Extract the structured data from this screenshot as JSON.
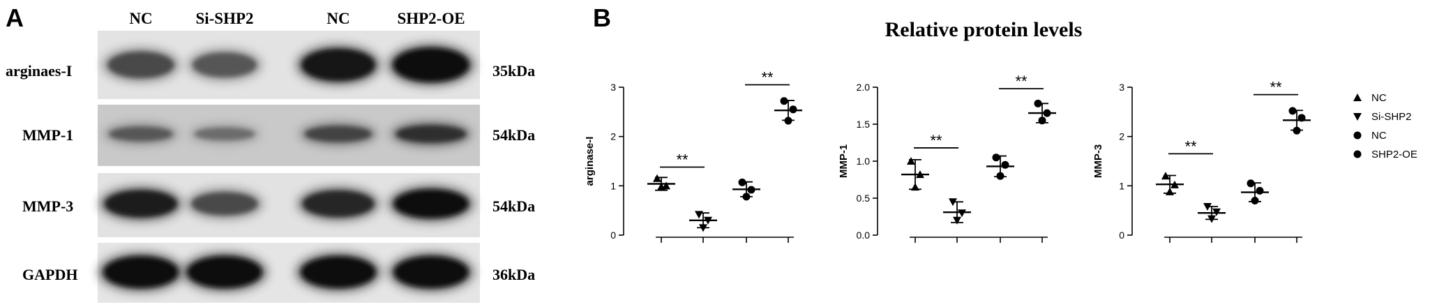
{
  "panel_a": {
    "letter": "A",
    "lanes": [
      "NC",
      "Si-SHP2",
      "NC",
      "SHP2-OE"
    ],
    "blots": [
      {
        "label": "arginaes-I",
        "size": "35kDa",
        "intensity": [
          0.55,
          0.45,
          0.9,
          1.0
        ]
      },
      {
        "label": "MMP-1",
        "size": "54kDa",
        "intensity": [
          0.45,
          0.3,
          0.6,
          0.75
        ]
      },
      {
        "label": "MMP-3",
        "size": "54kDa",
        "intensity": [
          0.85,
          0.55,
          0.8,
          0.95
        ]
      },
      {
        "label": "GAPDH",
        "size": "36kDa",
        "intensity": [
          0.95,
          0.95,
          0.95,
          0.95
        ]
      }
    ]
  },
  "panel_b": {
    "letter": "B",
    "title": "Relative protein levels",
    "legend": {
      "placement": "right",
      "entries": [
        {
          "name": "NC",
          "marker": "triangle-up"
        },
        {
          "name": "Si-SHP2",
          "marker": "triangle-down"
        },
        {
          "name": "NC",
          "marker": "circle"
        },
        {
          "name": "SHP2-OE",
          "marker": "circle"
        }
      ]
    }
  },
  "chart_data": [
    {
      "type": "scatter",
      "ylabel": "arginase-I",
      "ylim": [
        0,
        3
      ],
      "yticks": [
        "0",
        "1",
        "2",
        "3"
      ],
      "groups": [
        "NC",
        "Si-SHP2",
        "NC",
        "SHP2-OE"
      ],
      "means": [
        1.04,
        0.3,
        0.93,
        2.53
      ],
      "errors": [
        0.13,
        0.15,
        0.15,
        0.2
      ],
      "points": [
        [
          1.15,
          1.0,
          0.98
        ],
        [
          0.42,
          0.3,
          0.15
        ],
        [
          1.07,
          0.92,
          0.78
        ],
        [
          2.72,
          2.55,
          2.32
        ]
      ],
      "significance": [
        {
          "from": 0,
          "to": 1,
          "label": "**",
          "y": 1.38
        },
        {
          "from": 2,
          "to": 3,
          "label": "**",
          "y": 3.05
        }
      ]
    },
    {
      "type": "scatter",
      "ylabel": "MMP-1",
      "ylim": [
        0,
        2.0
      ],
      "yticks": [
        "0.0",
        "0.5",
        "1.0",
        "1.5",
        "2.0"
      ],
      "groups": [
        "NC",
        "Si-SHP2",
        "NC",
        "SHP2-OE"
      ],
      "means": [
        0.82,
        0.31,
        0.93,
        1.65
      ],
      "errors": [
        0.2,
        0.14,
        0.14,
        0.13
      ],
      "points": [
        [
          1.0,
          0.82,
          0.65
        ],
        [
          0.45,
          0.3,
          0.2
        ],
        [
          1.05,
          0.95,
          0.8
        ],
        [
          1.78,
          1.65,
          1.55
        ]
      ],
      "significance": [
        {
          "from": 0,
          "to": 1,
          "label": "**",
          "y": 1.18
        },
        {
          "from": 2,
          "to": 3,
          "label": "**",
          "y": 1.98
        }
      ]
    },
    {
      "type": "scatter",
      "ylabel": "MMP-3",
      "ylim": [
        0,
        3
      ],
      "yticks": [
        "0",
        "1",
        "2",
        "3"
      ],
      "groups": [
        "NC",
        "Si-SHP2",
        "NC",
        "SHP2-OE"
      ],
      "means": [
        1.03,
        0.45,
        0.87,
        2.33
      ],
      "errors": [
        0.18,
        0.13,
        0.19,
        0.2
      ],
      "points": [
        [
          1.2,
          1.02,
          0.88
        ],
        [
          0.58,
          0.47,
          0.33
        ],
        [
          1.05,
          0.9,
          0.7
        ],
        [
          2.52,
          2.38,
          2.12
        ]
      ],
      "significance": [
        {
          "from": 0,
          "to": 1,
          "label": "**",
          "y": 1.65
        },
        {
          "from": 2,
          "to": 3,
          "label": "**",
          "y": 2.85
        }
      ]
    }
  ]
}
